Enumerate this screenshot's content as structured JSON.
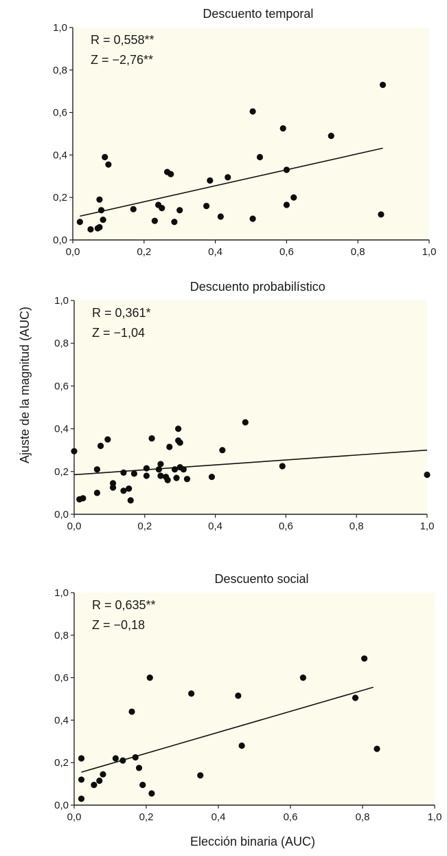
{
  "figure": {
    "ylabel": "Ajuste de la magnitud (AUC)",
    "xlabel": "Elección binaria (AUC)",
    "background_color": "#fdfcec",
    "point_color": "#0d0d0d"
  },
  "chart_data": [
    {
      "type": "scatter",
      "title": "Descuento temporal",
      "stats": [
        "R = 0,558**",
        "Z = −2,76**"
      ],
      "xlim": [
        0,
        1
      ],
      "ylim": [
        0,
        1
      ],
      "x_ticks": [
        "0,0",
        "0,2",
        "0,4",
        "0,6",
        "0,8",
        "1,0"
      ],
      "y_ticks": [
        "0,0",
        "0,2",
        "0,4",
        "0,6",
        "0,8",
        "1,0"
      ],
      "fit_line": {
        "x": [
          0.02,
          0.87
        ],
        "y": [
          0.112,
          0.432
        ]
      },
      "points": [
        [
          0.02,
          0.085
        ],
        [
          0.05,
          0.05
        ],
        [
          0.07,
          0.055
        ],
        [
          0.075,
          0.06
        ],
        [
          0.075,
          0.19
        ],
        [
          0.08,
          0.14
        ],
        [
          0.085,
          0.095
        ],
        [
          0.09,
          0.39
        ],
        [
          0.1,
          0.355
        ],
        [
          0.17,
          0.145
        ],
        [
          0.23,
          0.09
        ],
        [
          0.24,
          0.165
        ],
        [
          0.25,
          0.15
        ],
        [
          0.265,
          0.32
        ],
        [
          0.275,
          0.31
        ],
        [
          0.285,
          0.085
        ],
        [
          0.3,
          0.14
        ],
        [
          0.375,
          0.16
        ],
        [
          0.385,
          0.28
        ],
        [
          0.415,
          0.11
        ],
        [
          0.435,
          0.295
        ],
        [
          0.505,
          0.1
        ],
        [
          0.505,
          0.605
        ],
        [
          0.525,
          0.39
        ],
        [
          0.59,
          0.525
        ],
        [
          0.6,
          0.33
        ],
        [
          0.6,
          0.165
        ],
        [
          0.62,
          0.2
        ],
        [
          0.725,
          0.49
        ],
        [
          0.865,
          0.12
        ],
        [
          0.87,
          0.73
        ]
      ]
    },
    {
      "type": "scatter",
      "title": "Descuento probabilístico",
      "stats": [
        "R = 0,361*",
        "Z = −1,04"
      ],
      "xlim": [
        0,
        1
      ],
      "ylim": [
        0,
        1
      ],
      "x_ticks": [
        "0,0",
        "0,2",
        "0,4",
        "0,6",
        "0,8",
        "1,0"
      ],
      "y_ticks": [
        "0,0",
        "0,2",
        "0,4",
        "0,6",
        "0,8",
        "1,0"
      ],
      "fit_line": {
        "x": [
          0.0,
          1.0
        ],
        "y": [
          0.185,
          0.3
        ]
      },
      "points": [
        [
          0.0,
          0.295
        ],
        [
          0.015,
          0.07
        ],
        [
          0.025,
          0.075
        ],
        [
          0.065,
          0.1
        ],
        [
          0.065,
          0.21
        ],
        [
          0.075,
          0.32
        ],
        [
          0.095,
          0.35
        ],
        [
          0.11,
          0.145
        ],
        [
          0.11,
          0.125
        ],
        [
          0.14,
          0.11
        ],
        [
          0.14,
          0.195
        ],
        [
          0.155,
          0.12
        ],
        [
          0.16,
          0.065
        ],
        [
          0.17,
          0.19
        ],
        [
          0.205,
          0.215
        ],
        [
          0.205,
          0.18
        ],
        [
          0.22,
          0.355
        ],
        [
          0.24,
          0.21
        ],
        [
          0.245,
          0.235
        ],
        [
          0.245,
          0.18
        ],
        [
          0.26,
          0.175
        ],
        [
          0.265,
          0.16
        ],
        [
          0.27,
          0.315
        ],
        [
          0.285,
          0.21
        ],
        [
          0.29,
          0.17
        ],
        [
          0.295,
          0.345
        ],
        [
          0.295,
          0.4
        ],
        [
          0.3,
          0.335
        ],
        [
          0.3,
          0.22
        ],
        [
          0.31,
          0.21
        ],
        [
          0.32,
          0.165
        ],
        [
          0.39,
          0.175
        ],
        [
          0.42,
          0.3
        ],
        [
          0.485,
          0.43
        ],
        [
          0.59,
          0.225
        ],
        [
          1.0,
          0.185
        ]
      ]
    },
    {
      "type": "scatter",
      "title": "Descuento social",
      "stats": [
        "R = 0,635**",
        "Z = −0,18"
      ],
      "xlim": [
        0,
        1
      ],
      "ylim": [
        0,
        1
      ],
      "x_ticks": [
        "0,0",
        "0,2",
        "0,4",
        "0,6",
        "0,8",
        "1,0"
      ],
      "y_ticks": [
        "0,0",
        "0,2",
        "0,4",
        "0,6",
        "0,8",
        "1,0"
      ],
      "fit_line": {
        "x": [
          0.02,
          0.83
        ],
        "y": [
          0.155,
          0.555
        ]
      },
      "points": [
        [
          0.02,
          0.03
        ],
        [
          0.02,
          0.12
        ],
        [
          0.02,
          0.22
        ],
        [
          0.055,
          0.095
        ],
        [
          0.07,
          0.115
        ],
        [
          0.08,
          0.145
        ],
        [
          0.115,
          0.22
        ],
        [
          0.135,
          0.21
        ],
        [
          0.16,
          0.44
        ],
        [
          0.17,
          0.225
        ],
        [
          0.18,
          0.175
        ],
        [
          0.19,
          0.095
        ],
        [
          0.21,
          0.6
        ],
        [
          0.215,
          0.055
        ],
        [
          0.325,
          0.525
        ],
        [
          0.35,
          0.14
        ],
        [
          0.455,
          0.515
        ],
        [
          0.465,
          0.28
        ],
        [
          0.635,
          0.6
        ],
        [
          0.78,
          0.505
        ],
        [
          0.805,
          0.69
        ],
        [
          0.84,
          0.265
        ]
      ]
    }
  ]
}
